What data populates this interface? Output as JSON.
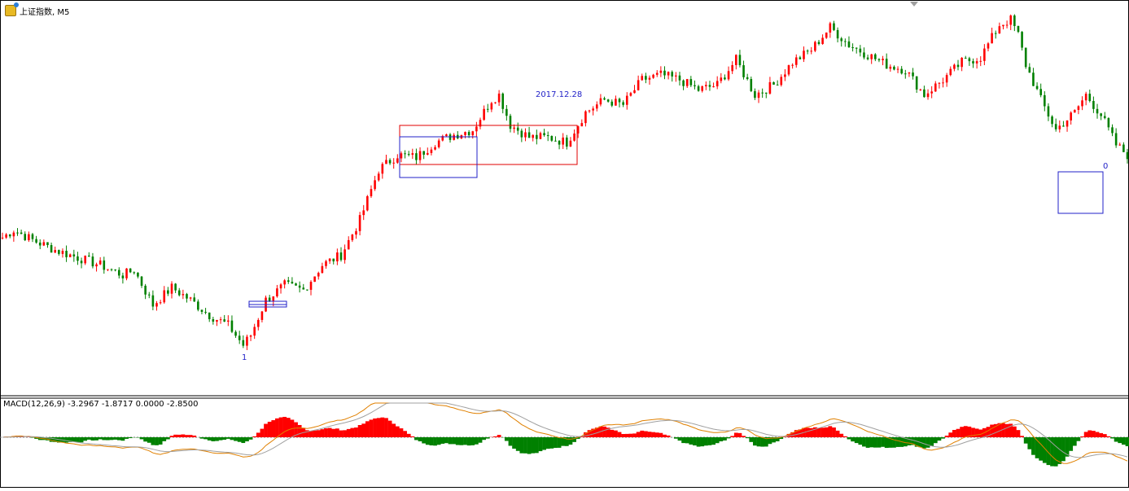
{
  "window": {
    "title": "上证指数, M5"
  },
  "macd": {
    "label": "MACD(12,26,9) -3.2967 -1.8717 0.0000 -2.8500",
    "colors": {
      "positive": "#ff0000",
      "negative": "#008000",
      "macd_line": "#e08000",
      "signal_line": "#a0a0a0"
    }
  },
  "annotations": {
    "date_label": "2017.12.28",
    "start_label": "1",
    "end_label": "0"
  },
  "colors": {
    "up_candle": "#ff0000",
    "down_candle": "#008000",
    "zone_blue": "#2020c8",
    "zone_red": "#e00000",
    "border": "#000000"
  },
  "chart_data": {
    "type": "line",
    "description_series": "price",
    "x_count": 300,
    "y_axis": "none printed",
    "grid": false,
    "series": [
      {
        "values_keypoints": [
          [
            0,
            55
          ],
          [
            3,
            58
          ],
          [
            8,
            54
          ],
          [
            14,
            50
          ],
          [
            20,
            47
          ],
          [
            26,
            44
          ],
          [
            32,
            40
          ],
          [
            35,
            42
          ],
          [
            40,
            28
          ],
          [
            45,
            35
          ],
          [
            50,
            30
          ],
          [
            55,
            24
          ],
          [
            60,
            20
          ],
          [
            64,
            12
          ],
          [
            66,
            16
          ],
          [
            70,
            30
          ],
          [
            75,
            36
          ],
          [
            80,
            34
          ],
          [
            85,
            44
          ],
          [
            90,
            48
          ],
          [
            95,
            62
          ],
          [
            100,
            82
          ],
          [
            105,
            88
          ],
          [
            110,
            87
          ],
          [
            115,
            93
          ],
          [
            120,
            96
          ],
          [
            125,
            98
          ],
          [
            130,
            110
          ],
          [
            132,
            112
          ],
          [
            135,
            100
          ],
          [
            140,
            95
          ],
          [
            145,
            95
          ],
          [
            150,
            93
          ],
          [
            155,
            105
          ],
          [
            160,
            110
          ],
          [
            165,
            108
          ],
          [
            170,
            118
          ],
          [
            175,
            120
          ],
          [
            180,
            118
          ],
          [
            185,
            114
          ],
          [
            190,
            116
          ],
          [
            195,
            126
          ],
          [
            200,
            112
          ],
          [
            205,
            116
          ],
          [
            210,
            125
          ],
          [
            215,
            130
          ],
          [
            220,
            139
          ],
          [
            225,
            132
          ],
          [
            230,
            128
          ],
          [
            235,
            124
          ],
          [
            240,
            122
          ],
          [
            245,
            112
          ],
          [
            250,
            118
          ],
          [
            255,
            125
          ],
          [
            260,
            127
          ],
          [
            265,
            140
          ],
          [
            268,
            142
          ],
          [
            270,
            136
          ],
          [
            272,
            124
          ],
          [
            276,
            110
          ],
          [
            280,
            98
          ],
          [
            285,
            105
          ],
          [
            288,
            112
          ],
          [
            292,
            104
          ],
          [
            296,
            92
          ],
          [
            299,
            88
          ]
        ]
      }
    ]
  }
}
